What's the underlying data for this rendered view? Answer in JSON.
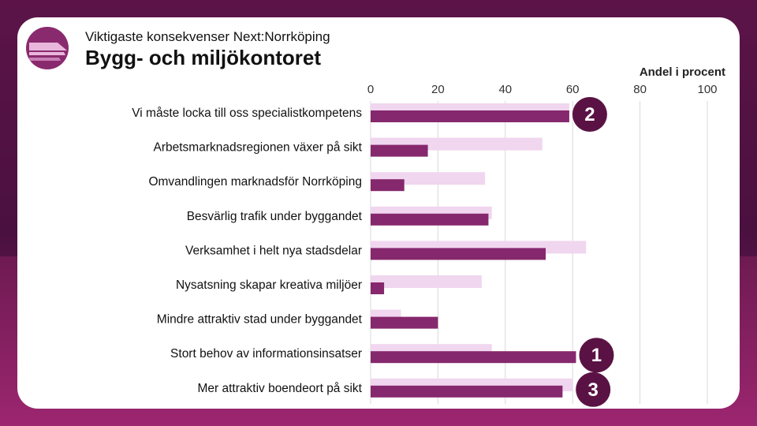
{
  "header": {
    "subtitle": "Viktigaste konsekvenser Next:Norrköping",
    "title": "Bygg- och miljökontoret"
  },
  "colors": {
    "series_light": "#f0d6ef",
    "series_dark": "#86286d",
    "badge_fill": "#5a1244",
    "grid": "#d9d9d9"
  },
  "chart_data": {
    "type": "bar",
    "orientation": "horizontal",
    "xlabel": "Andel i procent",
    "xlim": [
      0,
      100
    ],
    "ticks": [
      0,
      20,
      40,
      60,
      80,
      100
    ],
    "tick_labels": [
      "0",
      "20",
      "40",
      "60",
      "80",
      "100"
    ],
    "grid": true,
    "categories": [
      "Vi måste locka till oss specialistkompetens",
      "Arbetsmarknadsregionen växer på sikt",
      "Omvandlingen marknadsför Norrköping",
      "Besvärlig trafik under byggandet",
      "Verksamhet i helt nya stadsdelar",
      "Nysatsning skapar kreativa miljöer",
      "Mindre attraktiv stad under byggandet",
      "Stort behov av informationsinsatser",
      "Mer attraktiv boendeort på sikt"
    ],
    "series": [
      {
        "name": "light",
        "values": [
          59,
          51,
          34,
          36,
          64,
          33,
          9,
          36,
          60
        ]
      },
      {
        "name": "dark",
        "values": [
          59,
          17,
          10,
          35,
          52,
          4,
          20,
          61,
          57
        ]
      }
    ],
    "annotations": [
      {
        "label": "2",
        "category_index": 0
      },
      {
        "label": "1",
        "category_index": 7
      },
      {
        "label": "3",
        "category_index": 8
      }
    ]
  }
}
